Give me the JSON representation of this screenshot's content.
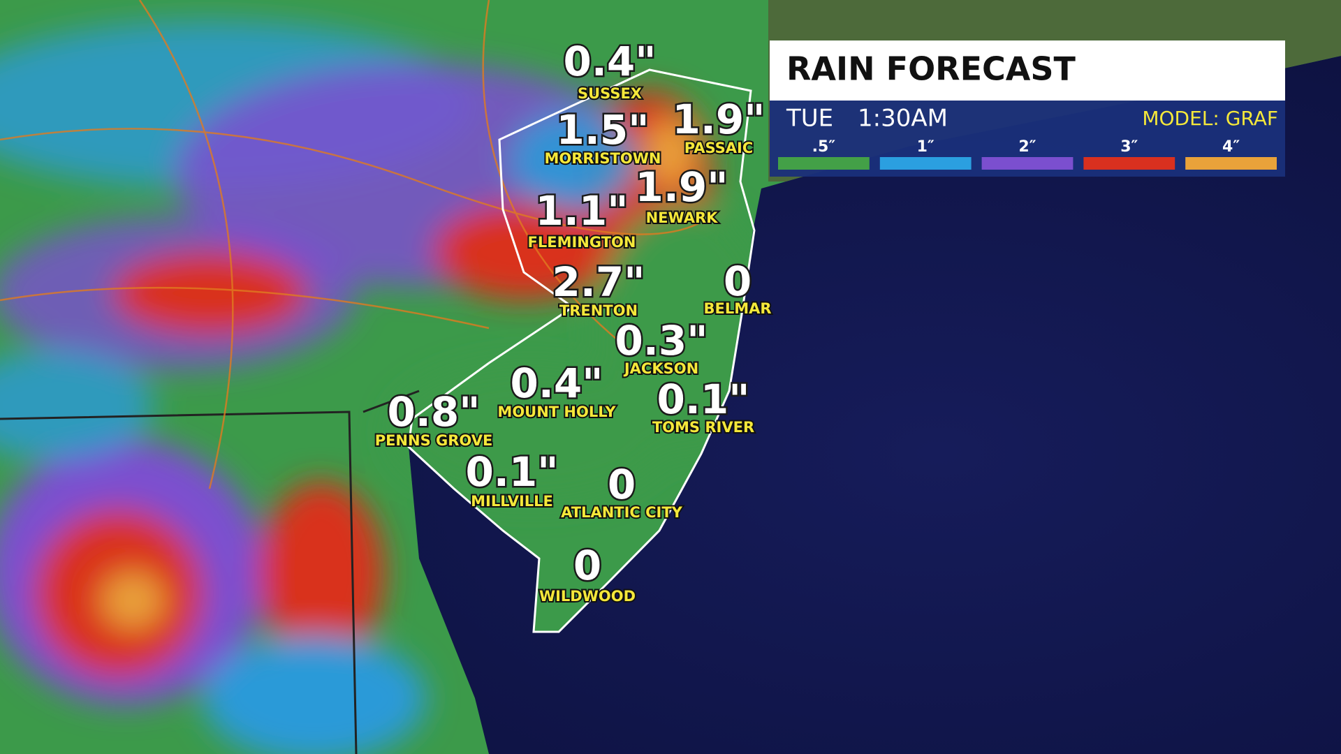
{
  "panel": {
    "title": "RAIN FORECAST",
    "day": "TUE",
    "time": "1:30AM",
    "model": "MODEL: GRAF",
    "legend": [
      {
        "label": ".5″",
        "color": "#43a047"
      },
      {
        "label": "1″",
        "color": "#2b9fe0"
      },
      {
        "label": "2″",
        "color": "#7b4fcf"
      },
      {
        "label": "3″",
        "color": "#d9301f"
      },
      {
        "label": "4″",
        "color": "#e9a23a"
      }
    ]
  },
  "locations": [
    {
      "amount": "0.4\"",
      "name": "SUSSEX"
    },
    {
      "amount": "1.5\"",
      "name": "MORRISTOWN"
    },
    {
      "amount": "1.9\"",
      "name": "PASSAIC"
    },
    {
      "amount": "1.9\"",
      "name": "NEWARK"
    },
    {
      "amount": "1.1\"",
      "name": "FLEMINGTON"
    },
    {
      "amount": "2.7\"",
      "name": "TRENTON"
    },
    {
      "amount": "0",
      "name": "BELMAR"
    },
    {
      "amount": "0.3\"",
      "name": "JACKSON"
    },
    {
      "amount": "0.4\"",
      "name": "MOUNT HOLLY"
    },
    {
      "amount": "0.1\"",
      "name": "TOMS RIVER"
    },
    {
      "amount": "0.8\"",
      "name": "PENNS GROVE"
    },
    {
      "amount": "0.1\"",
      "name": "MILLVILLE"
    },
    {
      "amount": "0",
      "name": "ATLANTIC CITY"
    },
    {
      "amount": "0",
      "name": "WILDWOOD"
    }
  ]
}
